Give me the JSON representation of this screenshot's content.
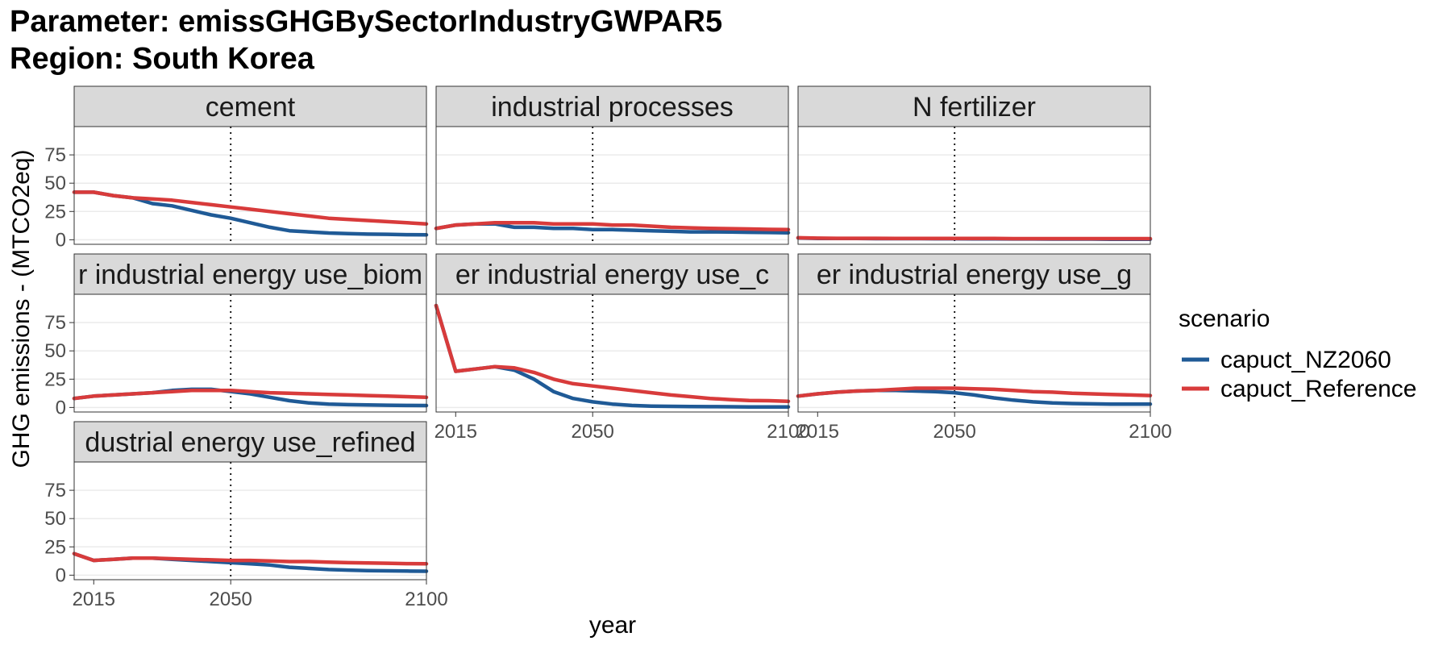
{
  "header": {
    "parameter_line": "Parameter: emissGHGBySectorIndustryGWPAR5",
    "region_line": "Region: South Korea"
  },
  "colors": {
    "capuct_NZ2060": "#1f5a96",
    "capuct_Reference": "#d83b3b",
    "strip_fill": "#d9d9d9",
    "grid": "#ebebeb"
  },
  "chart_data": {
    "type": "line",
    "xlabel": "year",
    "ylabel": "GHG emissions - (MTCO2eq)",
    "x_ticks": [
      2015,
      2050,
      2100
    ],
    "y_ticks": [
      0,
      25,
      50,
      75
    ],
    "xlim": [
      2010,
      2100
    ],
    "ylim": [
      -4,
      100
    ],
    "reference_line_x": 2050,
    "legend": {
      "title": "scenario",
      "position": "right",
      "entries": [
        "capuct_NZ2060",
        "capuct_Reference"
      ]
    },
    "x": [
      2010,
      2015,
      2020,
      2025,
      2030,
      2035,
      2040,
      2045,
      2050,
      2055,
      2060,
      2065,
      2070,
      2075,
      2080,
      2085,
      2090,
      2095,
      2100
    ],
    "panels": [
      {
        "label": "cement",
        "display_label": "cement",
        "series": [
          {
            "name": "capuct_NZ2060",
            "values": [
              42,
              42,
              39,
              37,
              32,
              30,
              26,
              22,
              19,
              15,
              11,
              8,
              7,
              6,
              5.5,
              5,
              4.8,
              4.5,
              4.3
            ]
          },
          {
            "name": "capuct_Reference",
            "values": [
              42,
              42,
              39,
              37,
              36,
              35,
              33,
              31,
              29,
              27,
              25,
              23,
              21,
              19,
              18,
              17,
              16,
              15,
              14
            ]
          }
        ]
      },
      {
        "label": "industrial processes",
        "display_label": "industrial processes",
        "series": [
          {
            "name": "capuct_NZ2060",
            "values": [
              10,
              13,
              14,
              14,
              11,
              11,
              10,
              10,
              9,
              9,
              8.5,
              8,
              7.5,
              7,
              7,
              6.8,
              6.6,
              6.4,
              6.2
            ]
          },
          {
            "name": "capuct_Reference",
            "values": [
              10,
              13,
              14,
              15,
              15,
              15,
              14,
              14,
              14,
              13,
              13,
              12,
              11,
              10.5,
              10,
              9.8,
              9.5,
              9.2,
              9
            ]
          }
        ]
      },
      {
        "label": "N fertilizer",
        "display_label": "N fertilizer",
        "series": [
          {
            "name": "capuct_NZ2060",
            "values": [
              1.6,
              1.2,
              1.1,
              1.1,
              1,
              1,
              1,
              0.9,
              0.9,
              0.8,
              0.8,
              0.7,
              0.7,
              0.6,
              0.6,
              0.6,
              0.5,
              0.5,
              0.5
            ]
          },
          {
            "name": "capuct_Reference",
            "values": [
              1.8,
              1.4,
              1.3,
              1.3,
              1.3,
              1.2,
              1.2,
              1.2,
              1.1,
              1.1,
              1.1,
              1,
              1,
              1,
              1,
              1,
              1,
              1,
              1
            ]
          }
        ]
      },
      {
        "label": "other industrial energy use_biomass",
        "display_label": "r industrial energy use_biom",
        "series": [
          {
            "name": "capuct_NZ2060",
            "values": [
              8,
              10,
              11,
              12,
              13,
              15,
              16,
              16,
              14,
              12,
              9,
              6,
              4,
              3,
              2.5,
              2.2,
              2,
              1.8,
              1.7
            ]
          },
          {
            "name": "capuct_Reference",
            "values": [
              8,
              10,
              11,
              12,
              13,
              14,
              15,
              15,
              15,
              14,
              13,
              12.5,
              12,
              11.5,
              11,
              10.5,
              10,
              9.5,
              9
            ]
          }
        ]
      },
      {
        "label": "other industrial energy use_coal",
        "display_label": "er industrial energy use_c",
        "series": [
          {
            "name": "capuct_NZ2060",
            "values": [
              90,
              32,
              34,
              36,
              33,
              25,
              14,
              8,
              5,
              3,
              1.8,
              1.2,
              1,
              0.8,
              0.7,
              0.6,
              0.5,
              0.5,
              0.5
            ]
          },
          {
            "name": "capuct_Reference",
            "values": [
              90,
              32,
              34,
              36,
              35,
              31,
              25,
              21,
              19,
              17,
              15,
              13,
              11,
              9.5,
              8,
              7,
              6.2,
              6,
              5.5
            ]
          }
        ]
      },
      {
        "label": "other industrial energy use_gas",
        "display_label": "er industrial energy use_g",
        "series": [
          {
            "name": "capuct_NZ2060",
            "values": [
              10,
              12,
              13.5,
              14.5,
              15,
              15,
              14.5,
              14,
              13,
              11,
              8.5,
              6.5,
              5,
              4,
              3.5,
              3.2,
              3,
              3,
              3
            ]
          },
          {
            "name": "capuct_Reference",
            "values": [
              10,
              12,
              13.5,
              14.5,
              15,
              16,
              17,
              17,
              17,
              16.5,
              16,
              15,
              14,
              13.5,
              12.5,
              12,
              11.5,
              11,
              10.5
            ]
          }
        ]
      },
      {
        "label": "other industrial energy use_refined liquids",
        "display_label": "dustrial energy use_refined",
        "series": [
          {
            "name": "capuct_NZ2060",
            "values": [
              19,
              13,
              14,
              15,
              15,
              14,
              13,
              12,
              11,
              10,
              9,
              7,
              6,
              5,
              4.5,
              4,
              3.8,
              3.6,
              3.5
            ]
          },
          {
            "name": "capuct_Reference",
            "values": [
              19,
              13,
              14,
              15,
              15,
              14.5,
              14,
              13.5,
              13,
              13,
              12.5,
              12,
              12,
              11.5,
              11,
              10.8,
              10.5,
              10.2,
              10
            ]
          }
        ]
      }
    ]
  }
}
